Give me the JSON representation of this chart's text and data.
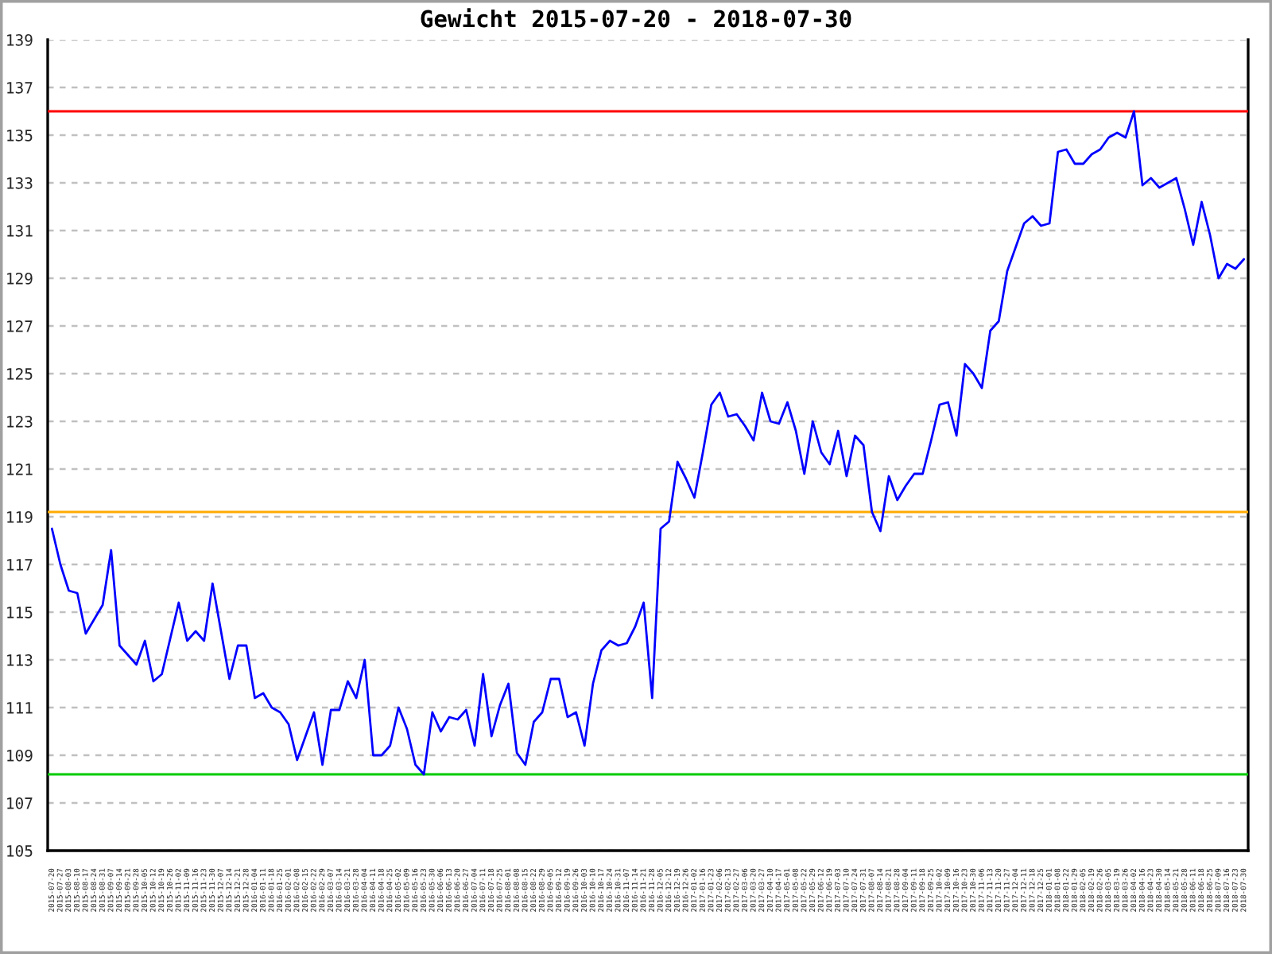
{
  "chart_data": {
    "type": "line",
    "title": "Gewicht 2015-07-20 - 2018-07-30",
    "categories": [
      "2015-07-20",
      "2015-07-27",
      "2015-08-03",
      "2015-08-10",
      "2015-08-17",
      "2015-08-24",
      "2015-08-31",
      "2015-09-07",
      "2015-09-14",
      "2015-09-21",
      "2015-09-28",
      "2015-10-05",
      "2015-10-12",
      "2015-10-19",
      "2015-10-26",
      "2015-11-02",
      "2015-11-09",
      "2015-11-16",
      "2015-11-23",
      "2015-11-30",
      "2015-12-07",
      "2015-12-14",
      "2015-12-21",
      "2015-12-28",
      "2016-01-04",
      "2016-01-11",
      "2016-01-18",
      "2016-01-25",
      "2016-02-01",
      "2016-02-08",
      "2016-02-15",
      "2016-02-22",
      "2016-02-29",
      "2016-03-07",
      "2016-03-14",
      "2016-03-21",
      "2016-03-28",
      "2016-04-04",
      "2016-04-11",
      "2016-04-18",
      "2016-04-25",
      "2016-05-02",
      "2016-05-09",
      "2016-05-16",
      "2016-05-23",
      "2016-05-30",
      "2016-06-06",
      "2016-06-13",
      "2016-06-20",
      "2016-06-27",
      "2016-07-04",
      "2016-07-11",
      "2016-07-18",
      "2016-07-25",
      "2016-08-01",
      "2016-08-08",
      "2016-08-15",
      "2016-08-22",
      "2016-08-29",
      "2016-09-05",
      "2016-09-12",
      "2016-09-19",
      "2016-09-26",
      "2016-10-03",
      "2016-10-10",
      "2016-10-17",
      "2016-10-24",
      "2016-10-31",
      "2016-11-07",
      "2016-11-14",
      "2016-11-21",
      "2016-11-28",
      "2016-12-05",
      "2016-12-12",
      "2016-12-19",
      "2016-12-26",
      "2017-01-02",
      "2017-01-16",
      "2017-01-23",
      "2017-02-06",
      "2017-02-13",
      "2017-02-27",
      "2017-03-06",
      "2017-03-20",
      "2017-03-27",
      "2017-04-10",
      "2017-04-17",
      "2017-05-01",
      "2017-05-08",
      "2017-05-22",
      "2017-05-29",
      "2017-06-12",
      "2017-06-19",
      "2017-07-03",
      "2017-07-10",
      "2017-07-24",
      "2017-07-31",
      "2017-08-07",
      "2017-08-14",
      "2017-08-21",
      "2017-08-28",
      "2017-09-04",
      "2017-09-11",
      "2017-09-18",
      "2017-09-25",
      "2017-10-02",
      "2017-10-09",
      "2017-10-16",
      "2017-10-23",
      "2017-10-30",
      "2017-11-06",
      "2017-11-13",
      "2017-11-20",
      "2017-11-27",
      "2017-12-04",
      "2017-12-11",
      "2017-12-18",
      "2017-12-25",
      "2018-01-01",
      "2018-01-08",
      "2018-01-22",
      "2018-01-29",
      "2018-02-05",
      "2018-02-19",
      "2018-02-26",
      "2018-03-05",
      "2018-03-19",
      "2018-03-26",
      "2018-04-02",
      "2018-04-16",
      "2018-04-23",
      "2018-04-30",
      "2018-05-14",
      "2018-05-21",
      "2018-05-28",
      "2018-06-11",
      "2018-06-18",
      "2018-06-25",
      "2018-07-09",
      "2018-07-16",
      "2018-07-23",
      "2018-07-30"
    ],
    "series": [
      {
        "color": "#0000ff",
        "values": [
          118.5,
          117.0,
          115.9,
          115.8,
          114.1,
          114.7,
          115.3,
          117.6,
          113.6,
          113.2,
          112.8,
          113.8,
          112.1,
          112.4,
          113.9,
          115.4,
          113.8,
          114.2,
          113.8,
          116.2,
          114.2,
          112.2,
          113.6,
          113.6,
          111.4,
          111.6,
          111.0,
          110.8,
          110.3,
          108.8,
          109.8,
          110.8,
          108.6,
          110.9,
          110.9,
          112.1,
          111.4,
          113.0,
          109.0,
          109.0,
          109.4,
          111.0,
          110.1,
          108.6,
          108.2,
          110.8,
          110.0,
          110.6,
          110.5,
          110.9,
          109.4,
          112.4,
          109.8,
          111.1,
          112.0,
          109.1,
          108.6,
          110.4,
          110.8,
          112.2,
          112.2,
          110.6,
          110.8,
          109.4,
          112.0,
          113.4,
          113.8,
          113.6,
          113.7,
          114.4,
          115.4,
          111.4,
          118.5,
          118.8,
          121.3,
          120.6,
          119.8,
          121.7,
          123.7,
          124.2,
          123.2,
          123.3,
          122.8,
          122.2,
          124.2,
          123.0,
          122.9,
          123.8,
          122.6,
          120.8,
          123.0,
          121.7,
          121.2,
          122.6,
          120.7,
          122.4,
          122.0,
          119.2,
          118.4,
          120.7,
          119.7,
          120.3,
          120.8,
          120.8,
          122.2,
          123.7,
          123.8,
          122.4,
          125.4,
          125.0,
          124.4,
          126.8,
          127.2,
          129.3,
          130.3,
          131.3,
          131.6,
          131.2,
          131.3,
          134.3,
          134.4,
          133.8,
          133.8,
          134.2,
          134.4,
          134.9,
          135.1,
          134.9,
          136.0,
          132.9,
          133.2,
          132.8,
          133.0,
          133.2,
          131.9,
          130.4,
          132.2,
          130.8,
          129.0,
          129.6,
          129.4,
          129.8
        ]
      }
    ],
    "ylim": [
      105,
      139
    ],
    "yticks": [
      105,
      107,
      109,
      111,
      113,
      115,
      117,
      119,
      121,
      123,
      125,
      127,
      129,
      131,
      133,
      135,
      137,
      139
    ],
    "grid": "y",
    "ref_lines": [
      {
        "axis": "y",
        "value": 136.0,
        "color": "#ff0000"
      },
      {
        "axis": "y",
        "value": 119.2,
        "color": "#ffaa00"
      },
      {
        "axis": "y",
        "value": 108.2,
        "color": "#00cc00"
      }
    ]
  }
}
